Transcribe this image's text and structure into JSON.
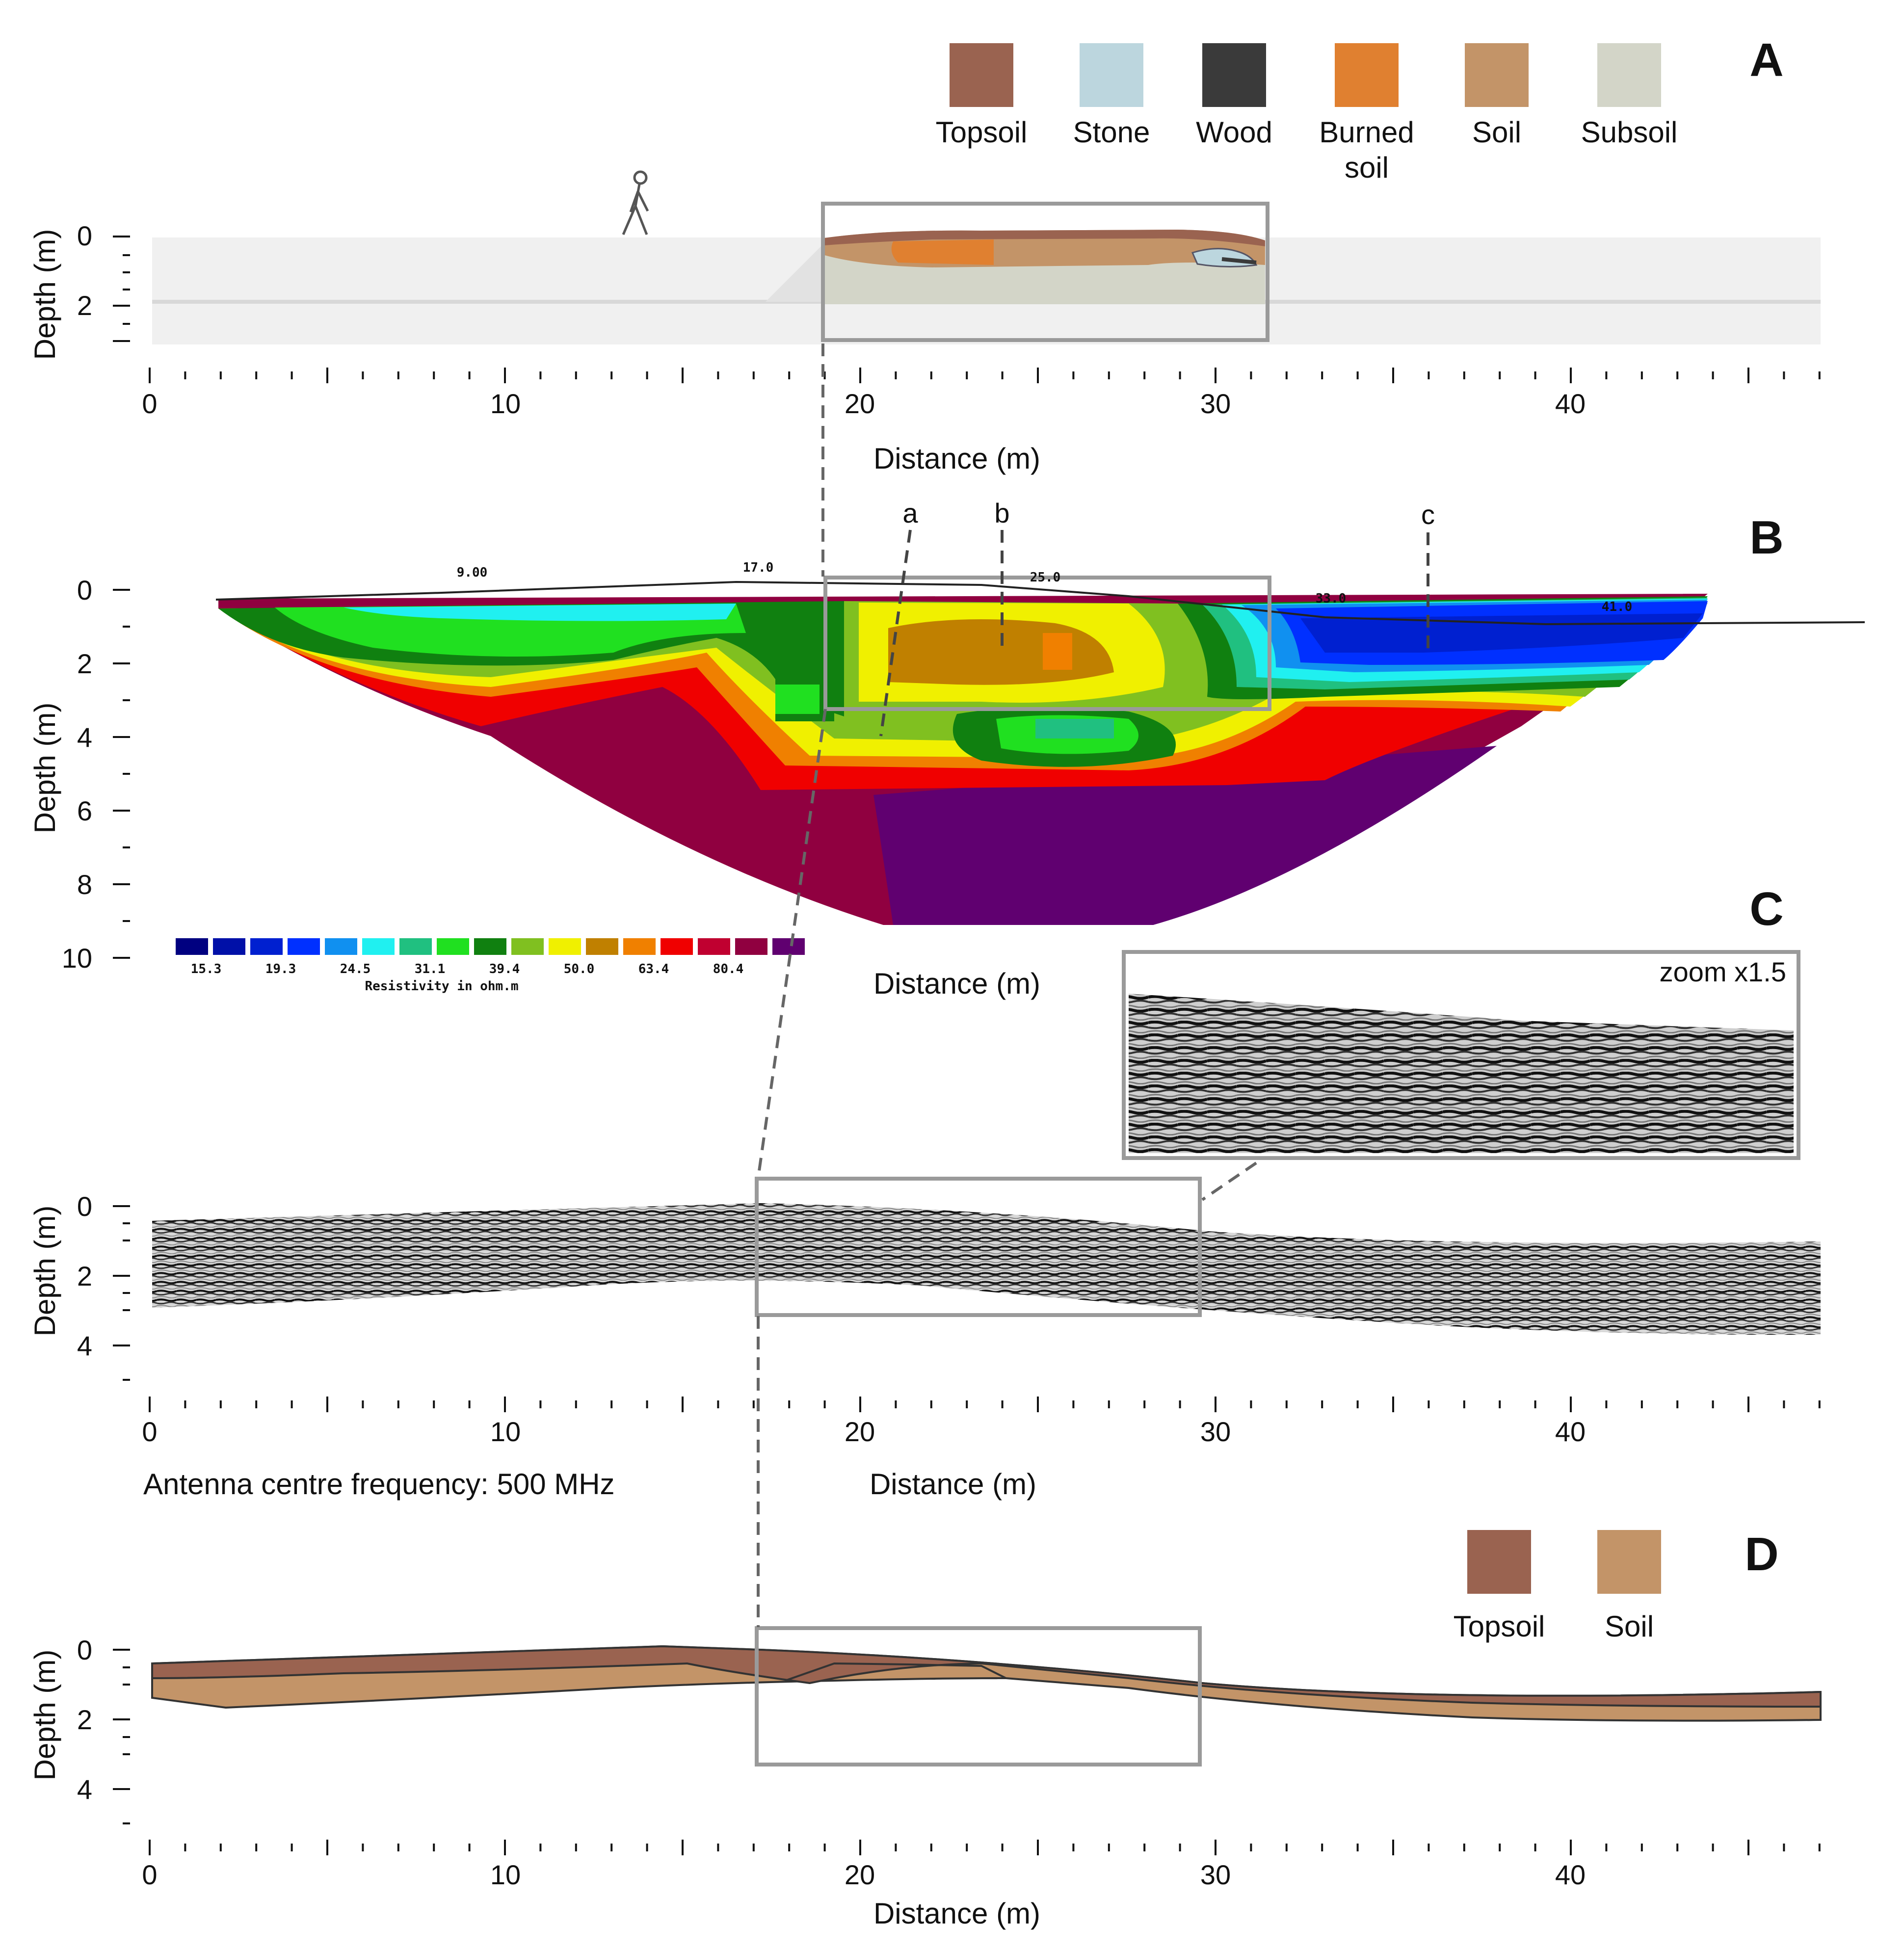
{
  "panel_labels": {
    "a": "A",
    "b": "B",
    "c": "C",
    "d": "D"
  },
  "legend_a": [
    {
      "label": "Topsoil",
      "color": "#9a6350"
    },
    {
      "label": "Stone",
      "color": "#bcd6de"
    },
    {
      "label": "Wood",
      "color": "#3a3a3a"
    },
    {
      "label": "Burned",
      "label2": "soil",
      "color": "#e08030"
    },
    {
      "label": "Soil",
      "color": "#c39468"
    },
    {
      "label": "Subsoil",
      "color": "#d3d5c8"
    }
  ],
  "legend_d": [
    {
      "label": "Topsoil",
      "color": "#9a6350"
    },
    {
      "label": "Soil",
      "color": "#c39468"
    }
  ],
  "axes": {
    "ylabel": "Depth (m)",
    "xlabel": "Distance (m)",
    "x_ticks": [
      "0",
      "10",
      "20",
      "30",
      "40"
    ],
    "y_ticks_a": [
      "0",
      "2"
    ],
    "y_ticks_b": [
      "0",
      "2",
      "4",
      "6",
      "8",
      "10"
    ],
    "y_ticks_c": [
      "0",
      "2",
      "4"
    ],
    "y_ticks_d": [
      "0",
      "2",
      "4"
    ]
  },
  "ert": {
    "top_ticks": [
      "9.00",
      "17.0",
      "25.0",
      "33.0",
      "41.0"
    ],
    "markers": [
      "a",
      "b",
      "c"
    ],
    "scale_labels": [
      "15.3",
      "19.3",
      "24.5",
      "31.1",
      "39.4",
      "50.0",
      "63.4",
      "80.4"
    ],
    "scale_title": "Resistivity in ohm.m",
    "scale_colors": [
      "#000080",
      "#0010a8",
      "#0020d0",
      "#0030ff",
      "#1090f0",
      "#20f0f0",
      "#20c080",
      "#20e020",
      "#108010",
      "#80c020",
      "#f0f000",
      "#c08000",
      "#f08000",
      "#f00000",
      "#c00030",
      "#900040",
      "#600070"
    ]
  },
  "gpr": {
    "zoom_label": "zoom x1.5",
    "antenna_label": "Antenna centre frequency: 500 MHz"
  }
}
